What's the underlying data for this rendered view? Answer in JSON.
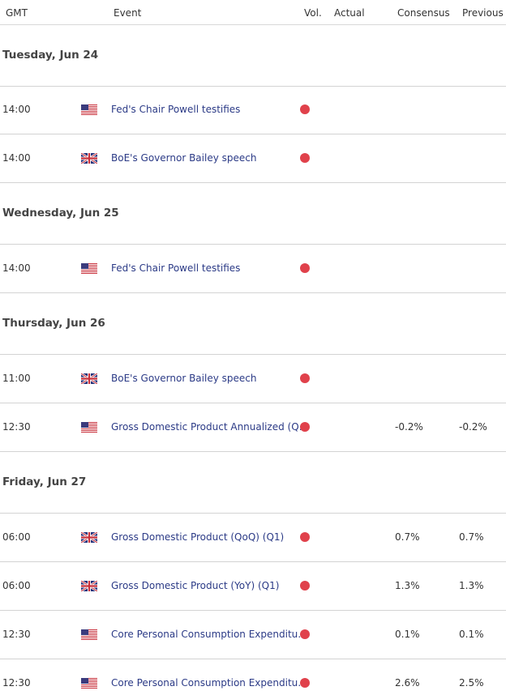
{
  "header": {
    "columns": [
      "GMT",
      "Event",
      "Vol.",
      "Actual",
      "Consensus",
      "Previous"
    ]
  },
  "days": [
    {
      "date": "Tuesday, Jun 24",
      "events": [
        {
          "time": "14:00",
          "event": "Fed's Chair Powell testifies"
        },
        {
          "time": "14:00",
          "event": "BoE's Governor Bailey speech"
        }
      ]
    },
    {
      "date": "Wednesday, Jun 25",
      "events": [
        {
          "time": "14:00",
          "event": "Fed's Chair Powell testifies"
        }
      ]
    },
    {
      "date": "Thursday, Jun 26",
      "events": [
        {
          "time": "11:00",
          "event": "BoE's Governor Bailey speech"
        },
        {
          "time": "12:30",
          "event": "Gross Domestic Product Annualized (Q…",
          "consensus": "-0.2%",
          "previous": "-0.2%"
        }
      ]
    },
    {
      "date": "Friday, Jun 27",
      "events": [
        {
          "time": "06:00",
          "event": "Gross Domestic Product (QoQ) (Q1)",
          "consensus": "0.7%",
          "previous": "0.7%"
        },
        {
          "time": "06:00",
          "event": "Gross Domestic Product (YoY) (Q1)",
          "consensus": "1.3%",
          "previous": "1.3%"
        },
        {
          "time": "12:30",
          "event": "Core Personal Consumption Expenditu…",
          "consensus": "0.1%",
          "previous": "0.1%"
        },
        {
          "time": "12:30",
          "event": "Core Personal Consumption Expenditu…",
          "consensus": "2.6%",
          "previous": "2.5%"
        }
      ]
    }
  ]
}
